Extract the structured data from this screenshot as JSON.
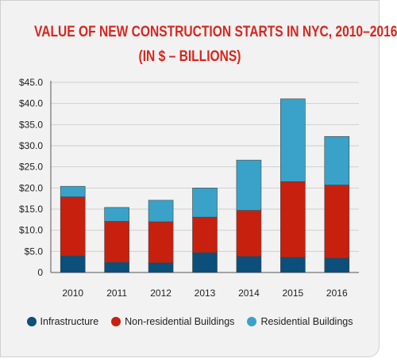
{
  "chart_data": {
    "type": "bar",
    "stacked": true,
    "title": "VALUE OF NEW CONSTRUCTION STARTS IN NYC, 2010–2016",
    "subtitle": "(IN $ – BILLIONS)",
    "xlabel": "",
    "ylabel": "",
    "categories": [
      "2010",
      "2011",
      "2012",
      "2013",
      "2014",
      "2015",
      "2016"
    ],
    "series": [
      {
        "name": "Infrastructure",
        "color": "#0b4f7a",
        "values": [
          3.9,
          2.4,
          2.3,
          4.7,
          3.8,
          3.6,
          3.4
        ]
      },
      {
        "name": "Non-residential Buildings",
        "color": "#c8200e",
        "values": [
          14.0,
          9.7,
          9.7,
          8.4,
          10.9,
          17.9,
          17.3
        ]
      },
      {
        "name": "Residential Buildings",
        "color": "#3aa2c8",
        "values": [
          2.5,
          3.3,
          5.1,
          6.9,
          11.9,
          19.6,
          11.5
        ]
      }
    ],
    "yticks": [
      "0",
      "$5.0",
      "$10.0",
      "$15.0",
      "$20.0",
      "$25.0",
      "$30.0",
      "$35.0",
      "$40.0",
      "$45.0"
    ],
    "ylim": [
      0,
      45
    ],
    "grid": true,
    "legend_position": "bottom"
  }
}
